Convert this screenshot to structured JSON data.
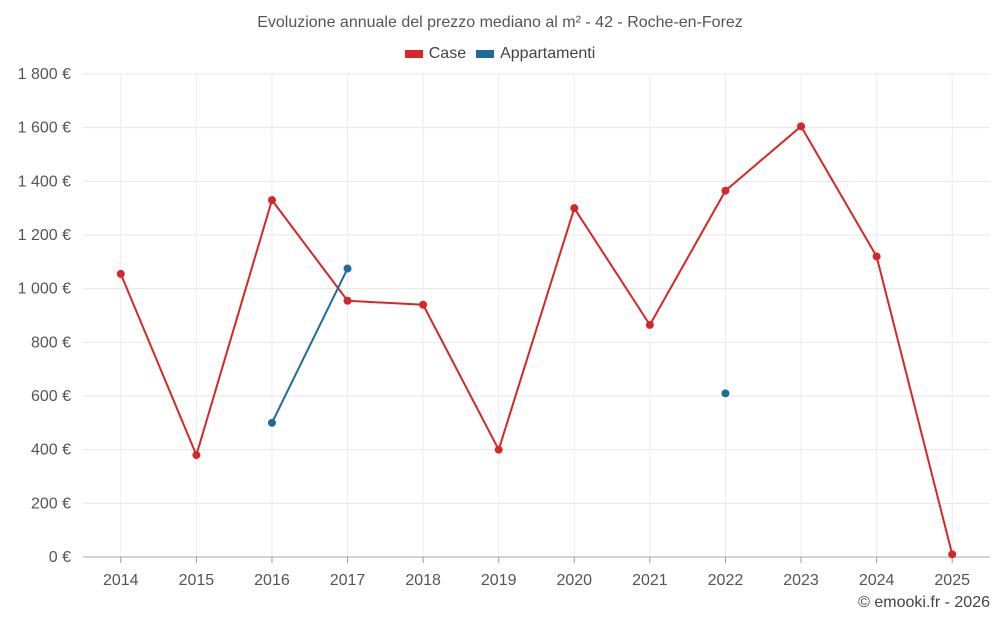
{
  "chart_data": {
    "type": "line",
    "title": "Evoluzione annuale del prezzo mediano al m² - 42 - Roche-en-Forez",
    "categories": [
      "2014",
      "2015",
      "2016",
      "2017",
      "2018",
      "2019",
      "2020",
      "2021",
      "2022",
      "2023",
      "2024",
      "2025"
    ],
    "series": [
      {
        "name": "Case",
        "color": "#d62728",
        "values": [
          1055,
          380,
          1330,
          955,
          940,
          400,
          1300,
          865,
          1365,
          1605,
          1120,
          10
        ]
      },
      {
        "name": "Appartamenti",
        "color": "#1f6b9c",
        "values": [
          null,
          null,
          500,
          1075,
          null,
          null,
          null,
          null,
          610,
          null,
          null,
          null
        ]
      }
    ],
    "ylim": [
      0,
      1800
    ],
    "yticks": [
      0,
      200,
      400,
      600,
      800,
      1000,
      1200,
      1400,
      1600,
      1800
    ],
    "ytick_labels": [
      "0 €",
      "200 €",
      "400 €",
      "600 €",
      "800 €",
      "1 000 €",
      "1 200 €",
      "1 400 €",
      "1 600 €",
      "1 800 €"
    ],
    "grid": true,
    "legend_position": "top-center"
  },
  "credit": "© emooki.fr - 2026"
}
